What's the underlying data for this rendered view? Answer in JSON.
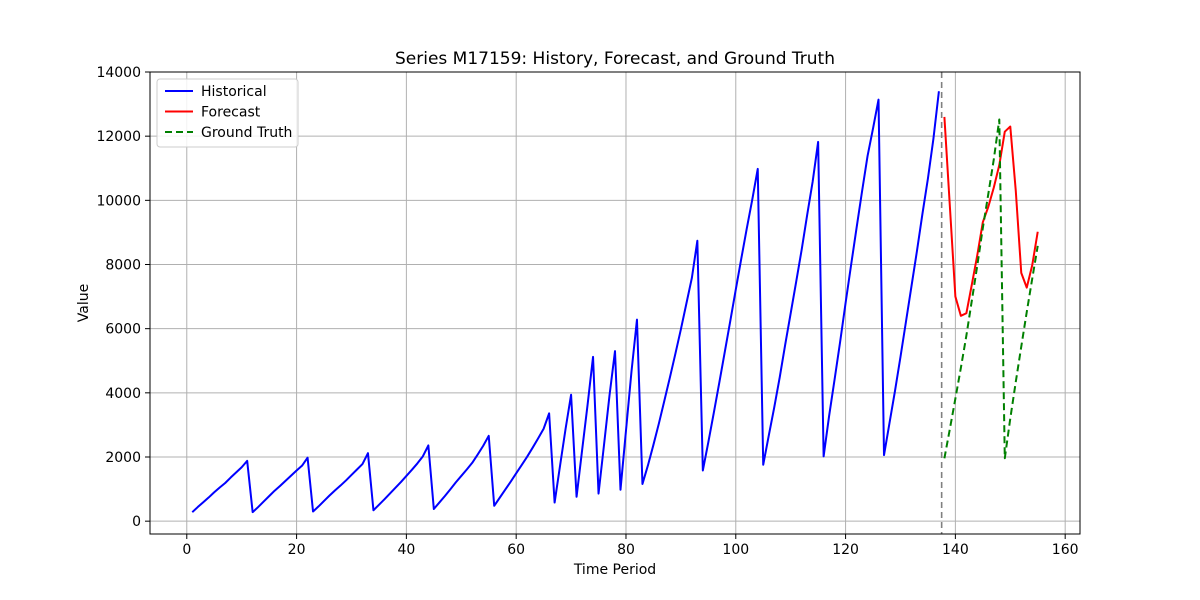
{
  "chart_data": {
    "type": "line",
    "title": "Series M17159: History, Forecast, and Ground Truth",
    "xlabel": "Time Period",
    "ylabel": "Value",
    "xlim": [
      -6.7,
      162.7
    ],
    "ylim": [
      -400,
      14000
    ],
    "xticks": [
      "0",
      "20",
      "40",
      "60",
      "80",
      "100",
      "120",
      "140",
      "160"
    ],
    "yticks": [
      "0",
      "2000",
      "4000",
      "6000",
      "8000",
      "10000",
      "12000",
      "14000"
    ],
    "grid": true,
    "legend_position": "upper-left",
    "forecast_start_marker": 137.5,
    "series": [
      {
        "name": "Historical",
        "color": "#0000ff",
        "style": "solid",
        "points": [
          [
            1,
            280
          ],
          [
            2,
            440
          ],
          [
            3,
            590
          ],
          [
            4,
            740
          ],
          [
            5,
            900
          ],
          [
            6,
            1050
          ],
          [
            7,
            1190
          ],
          [
            8,
            1360
          ],
          [
            9,
            1520
          ],
          [
            10,
            1680
          ],
          [
            11,
            1880
          ],
          [
            12,
            280
          ],
          [
            13,
            440
          ],
          [
            14,
            610
          ],
          [
            15,
            780
          ],
          [
            16,
            950
          ],
          [
            17,
            1100
          ],
          [
            18,
            1260
          ],
          [
            19,
            1420
          ],
          [
            20,
            1580
          ],
          [
            21,
            1730
          ],
          [
            22,
            1980
          ],
          [
            23,
            300
          ],
          [
            24,
            460
          ],
          [
            25,
            630
          ],
          [
            26,
            800
          ],
          [
            27,
            960
          ],
          [
            28,
            1110
          ],
          [
            29,
            1270
          ],
          [
            30,
            1440
          ],
          [
            31,
            1610
          ],
          [
            32,
            1780
          ],
          [
            33,
            2120
          ],
          [
            34,
            340
          ],
          [
            35,
            510
          ],
          [
            36,
            680
          ],
          [
            37,
            860
          ],
          [
            38,
            1040
          ],
          [
            39,
            1220
          ],
          [
            40,
            1410
          ],
          [
            41,
            1600
          ],
          [
            42,
            1800
          ],
          [
            43,
            2020
          ],
          [
            44,
            2360
          ],
          [
            45,
            380
          ],
          [
            46,
            580
          ],
          [
            47,
            780
          ],
          [
            48,
            990
          ],
          [
            49,
            1210
          ],
          [
            50,
            1410
          ],
          [
            51,
            1610
          ],
          [
            52,
            1820
          ],
          [
            53,
            2080
          ],
          [
            54,
            2350
          ],
          [
            55,
            2660
          ],
          [
            56,
            480
          ],
          [
            57,
            730
          ],
          [
            58,
            980
          ],
          [
            59,
            1230
          ],
          [
            60,
            1490
          ],
          [
            61,
            1750
          ],
          [
            62,
            2010
          ],
          [
            63,
            2290
          ],
          [
            64,
            2580
          ],
          [
            65,
            2880
          ],
          [
            66,
            3360
          ],
          [
            67,
            580
          ],
          [
            68,
            1740
          ],
          [
            69,
            2880
          ],
          [
            70,
            3940
          ],
          [
            71,
            760
          ],
          [
            72,
            2200
          ],
          [
            73,
            3620
          ],
          [
            74,
            5120
          ],
          [
            75,
            860
          ],
          [
            76,
            2380
          ],
          [
            77,
            3920
          ],
          [
            78,
            5300
          ],
          [
            79,
            980
          ],
          [
            80,
            2820
          ],
          [
            81,
            4660
          ],
          [
            82,
            6280
          ],
          [
            83,
            1160
          ],
          [
            84,
            1740
          ],
          [
            85,
            2380
          ],
          [
            86,
            3050
          ],
          [
            87,
            3760
          ],
          [
            88,
            4480
          ],
          [
            89,
            5220
          ],
          [
            90,
            5980
          ],
          [
            91,
            6780
          ],
          [
            92,
            7580
          ],
          [
            93,
            8740
          ],
          [
            94,
            1580
          ],
          [
            95,
            2460
          ],
          [
            96,
            3380
          ],
          [
            97,
            4320
          ],
          [
            98,
            5280
          ],
          [
            99,
            6240
          ],
          [
            100,
            7220
          ],
          [
            101,
            8180
          ],
          [
            102,
            9120
          ],
          [
            103,
            10020
          ],
          [
            104,
            10980
          ],
          [
            105,
            1760
          ],
          [
            106,
            2660
          ],
          [
            107,
            3540
          ],
          [
            108,
            4480
          ],
          [
            109,
            5500
          ],
          [
            110,
            6480
          ],
          [
            111,
            7460
          ],
          [
            112,
            8460
          ],
          [
            113,
            9540
          ],
          [
            114,
            10580
          ],
          [
            115,
            11820
          ],
          [
            116,
            2020
          ],
          [
            117,
            3280
          ],
          [
            118,
            4420
          ],
          [
            119,
            5580
          ],
          [
            120,
            6800
          ],
          [
            121,
            7980
          ],
          [
            122,
            9140
          ],
          [
            123,
            10280
          ],
          [
            124,
            11380
          ],
          [
            125,
            12240
          ],
          [
            126,
            13140
          ],
          [
            127,
            2060
          ],
          [
            128,
            3060
          ],
          [
            129,
            4060
          ],
          [
            130,
            5120
          ],
          [
            131,
            6220
          ],
          [
            132,
            7320
          ],
          [
            133,
            8420
          ],
          [
            134,
            9580
          ],
          [
            135,
            10680
          ],
          [
            136,
            11920
          ],
          [
            137,
            13400
          ]
        ]
      },
      {
        "name": "Forecast",
        "color": "#ff0000",
        "style": "solid",
        "points": [
          [
            138,
            12600
          ],
          [
            139,
            9800
          ],
          [
            140,
            7000
          ],
          [
            141,
            6400
          ],
          [
            142,
            6480
          ],
          [
            143,
            7380
          ],
          [
            144,
            8300
          ],
          [
            145,
            9320
          ],
          [
            146,
            9800
          ],
          [
            147,
            10400
          ],
          [
            148,
            11100
          ],
          [
            149,
            12140
          ],
          [
            150,
            12300
          ],
          [
            151,
            10300
          ],
          [
            152,
            7740
          ],
          [
            153,
            7280
          ],
          [
            154,
            7980
          ],
          [
            155,
            9020
          ]
        ]
      },
      {
        "name": "Ground Truth",
        "color": "#008000",
        "style": "dashed",
        "points": [
          [
            138,
            1960
          ],
          [
            139,
            2880
          ],
          [
            140,
            3820
          ],
          [
            141,
            4780
          ],
          [
            142,
            5780
          ],
          [
            143,
            6880
          ],
          [
            144,
            7980
          ],
          [
            145,
            9140
          ],
          [
            146,
            10200
          ],
          [
            147,
            11280
          ],
          [
            148,
            12520
          ],
          [
            149,
            1960
          ],
          [
            150,
            3200
          ],
          [
            151,
            4340
          ],
          [
            152,
            5440
          ],
          [
            153,
            6520
          ],
          [
            154,
            7560
          ],
          [
            155,
            8580
          ]
        ]
      }
    ]
  }
}
